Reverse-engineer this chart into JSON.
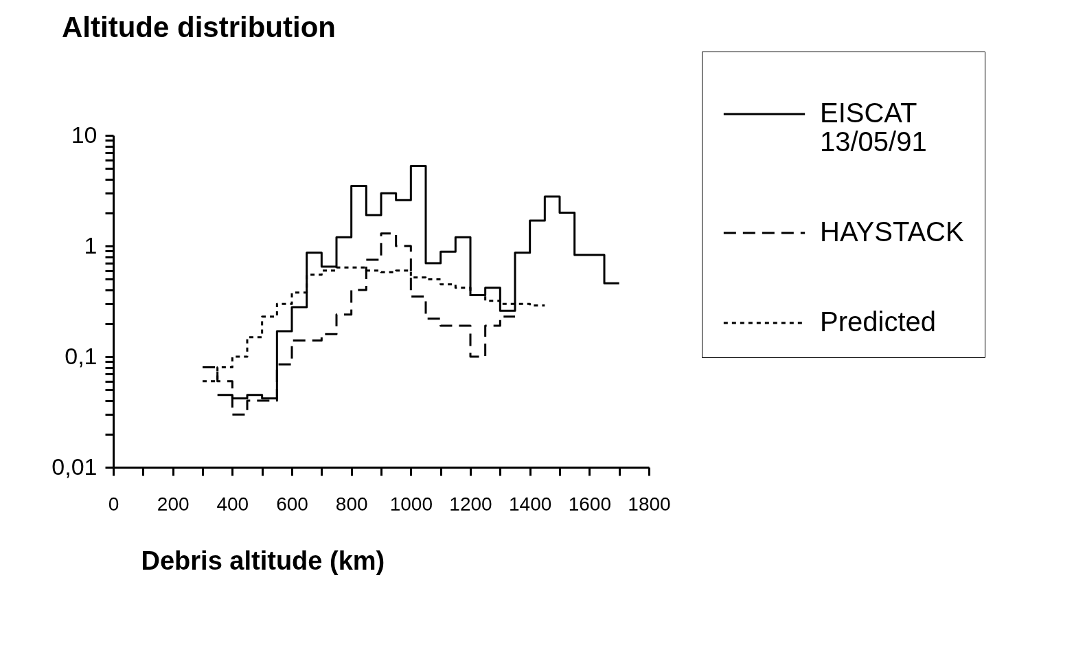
{
  "chart_data": {
    "type": "step",
    "title": "Altitude distribution",
    "xlabel": "Debris altitude (km)",
    "log": "y",
    "legend": "top right",
    "xlim": [
      0,
      1800
    ],
    "ylim": [
      0.01,
      10
    ],
    "xticks": [
      0,
      {
        "value": 100,
        "label": null
      },
      200,
      {
        "value": 300,
        "label": null
      },
      400,
      {
        "value": 500,
        "label": null
      },
      600,
      {
        "value": 700,
        "label": null
      },
      800,
      {
        "value": 900,
        "label": null
      },
      1000,
      {
        "value": 1100,
        "label": null
      },
      1200,
      {
        "value": 1300,
        "label": null
      },
      1400,
      {
        "value": 1500,
        "label": null
      },
      1600,
      {
        "value": 1700,
        "label": null
      },
      1800
    ],
    "yticks": [
      {
        "value": 0.01,
        "label": "0,01"
      },
      {
        "value": 0.02,
        "label": null
      },
      {
        "value": 0.03,
        "label": null
      },
      {
        "value": 0.04,
        "label": null
      },
      {
        "value": 0.05,
        "label": null
      },
      {
        "value": 0.06,
        "label": null
      },
      {
        "value": 0.07,
        "label": null
      },
      {
        "value": 0.08,
        "label": null
      },
      {
        "value": 0.09,
        "label": null
      },
      {
        "value": 0.1,
        "label": "0,1"
      },
      {
        "value": 0.2,
        "label": null
      },
      {
        "value": 0.3,
        "label": null
      },
      {
        "value": 0.4,
        "label": null
      },
      {
        "value": 0.5,
        "label": null
      },
      {
        "value": 0.6,
        "label": null
      },
      {
        "value": 0.7,
        "label": null
      },
      {
        "value": 0.8,
        "label": null
      },
      {
        "value": 0.9,
        "label": null
      },
      1,
      {
        "value": 2,
        "label": null
      },
      {
        "value": 3,
        "label": null
      },
      {
        "value": 4,
        "label": null
      },
      {
        "value": 5,
        "label": null
      },
      {
        "value": 6,
        "label": null
      },
      {
        "value": 7,
        "label": null
      },
      {
        "value": 8,
        "label": null
      },
      {
        "value": 9,
        "label": null
      },
      10
    ],
    "series": [
      {
        "name": "EISCAT 13/05/91",
        "color": "#000000",
        "line_style": "solid",
        "x": [
          350,
          400,
          450,
          500,
          550,
          600,
          650,
          700,
          750,
          800,
          850,
          900,
          950,
          1000,
          1050,
          1100,
          1150,
          1200,
          1250,
          1300,
          1350,
          1400,
          1450,
          1500,
          1550,
          1600,
          1650,
          1700
        ],
        "values": [
          0.045,
          0.042,
          0.045,
          0.042,
          0.17,
          0.28,
          0.87,
          0.65,
          1.2,
          3.5,
          1.9,
          3.0,
          2.6,
          5.3,
          0.7,
          0.89,
          1.2,
          0.36,
          0.42,
          0.26,
          0.87,
          1.7,
          2.8,
          2.0,
          0.83,
          0.83,
          0.46,
          0.46
        ]
      },
      {
        "name": "HAYSTACK",
        "color": "#000000",
        "line_style": "dashed",
        "x": [
          300,
          350,
          400,
          450,
          500,
          550,
          600,
          650,
          700,
          750,
          800,
          850,
          900,
          950,
          1000,
          1050,
          1100,
          1150,
          1200,
          1250,
          1300,
          1350
        ],
        "values": [
          0.08,
          0.06,
          0.03,
          0.04,
          0.04,
          0.085,
          0.14,
          0.14,
          0.16,
          0.24,
          0.4,
          0.75,
          1.3,
          1.0,
          0.35,
          0.22,
          0.19,
          0.19,
          0.1,
          0.19,
          0.23,
          0.23
        ]
      },
      {
        "name": "Predicted",
        "color": "#000000",
        "line_style": "dotted",
        "x": [
          300,
          350,
          400,
          450,
          500,
          550,
          600,
          650,
          700,
          750,
          800,
          850,
          900,
          950,
          1000,
          1050,
          1100,
          1150,
          1200,
          1250,
          1300,
          1350,
          1400,
          1450
        ],
        "values": [
          0.06,
          0.08,
          0.1,
          0.15,
          0.23,
          0.3,
          0.38,
          0.55,
          0.6,
          0.64,
          0.64,
          0.6,
          0.58,
          0.6,
          0.52,
          0.5,
          0.45,
          0.42,
          0.36,
          0.32,
          0.3,
          0.3,
          0.29,
          0.29
        ]
      }
    ]
  }
}
